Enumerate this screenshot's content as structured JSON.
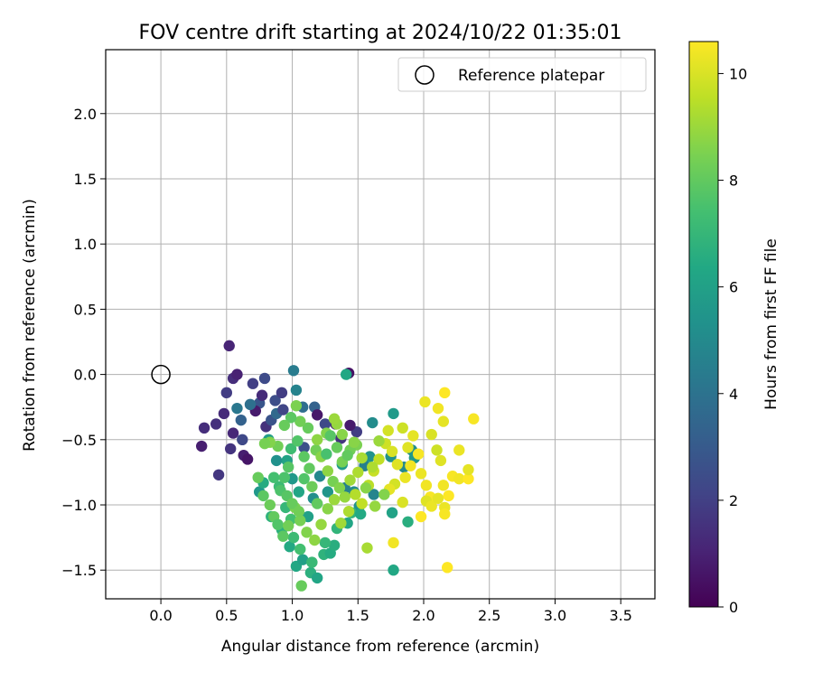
{
  "chart_data": {
    "type": "scatter",
    "title": "FOV centre drift starting at 2024/10/22 01:35:01",
    "xlabel": "Angular distance from reference (arcmin)",
    "ylabel": "Rotation from reference (arcmin)",
    "xlim": [
      -0.42,
      3.76
    ],
    "ylim": [
      -1.72,
      2.49
    ],
    "x_ticks": [
      "0.0",
      "0.5",
      "1.0",
      "1.5",
      "2.0",
      "2.5",
      "3.0",
      "3.5"
    ],
    "y_ticks": [
      "-1.5",
      "-1.0",
      "-0.5",
      "0.0",
      "0.5",
      "1.0",
      "1.5",
      "2.0"
    ],
    "grid": true,
    "legend": {
      "placement": "top-right",
      "entries": [
        "Reference platepar"
      ]
    },
    "reference_point": {
      "label": "Reference platepar",
      "x": 0.0,
      "y": 0.0
    },
    "colorbar": {
      "label": "Hours from first FF file",
      "colormap": "viridis",
      "range": [
        0,
        10.6
      ],
      "ticks": [
        "0",
        "2",
        "4",
        "6",
        "8",
        "10"
      ]
    },
    "points": [
      [
        0.52,
        0.22,
        1.1
      ],
      [
        0.53,
        -0.57,
        1.6
      ],
      [
        0.55,
        -0.03,
        1.4
      ],
      [
        0.58,
        0.0,
        1.0
      ],
      [
        0.48,
        -0.3,
        1.3
      ],
      [
        0.5,
        -0.14,
        1.9
      ],
      [
        0.55,
        -0.45,
        1.2
      ],
      [
        0.62,
        -0.5,
        2.3
      ],
      [
        0.63,
        -0.62,
        0.9
      ],
      [
        0.66,
        -0.65,
        0.6
      ],
      [
        0.42,
        -0.38,
        1.5
      ],
      [
        0.44,
        -0.77,
        1.7
      ],
      [
        0.33,
        -0.41,
        1.4
      ],
      [
        0.31,
        -0.55,
        0.9
      ],
      [
        0.7,
        -0.07,
        2.0
      ],
      [
        0.75,
        -0.22,
        2.8
      ],
      [
        0.79,
        -0.03,
        2.4
      ],
      [
        0.77,
        -0.16,
        1.3
      ],
      [
        0.72,
        -0.28,
        0.8
      ],
      [
        0.8,
        -0.4,
        1.5
      ],
      [
        0.68,
        -0.23,
        3.9
      ],
      [
        0.58,
        -0.26,
        4.2
      ],
      [
        0.61,
        -0.35,
        3.3
      ],
      [
        0.84,
        -0.35,
        2.7
      ],
      [
        0.88,
        -0.3,
        3.6
      ],
      [
        0.87,
        -0.2,
        2.5
      ],
      [
        0.92,
        -0.14,
        1.9
      ],
      [
        0.93,
        -0.27,
        2.2
      ],
      [
        1.01,
        0.03,
        4.4
      ],
      [
        1.03,
        -0.12,
        4.7
      ],
      [
        1.08,
        -0.25,
        3.8
      ],
      [
        1.17,
        -0.25,
        3.3
      ],
      [
        1.19,
        -0.31,
        0.7
      ],
      [
        1.33,
        -0.38,
        1.2
      ],
      [
        1.43,
        0.01,
        0.5
      ],
      [
        1.41,
        -0.0,
        6.3
      ],
      [
        1.37,
        -0.49,
        1.6
      ],
      [
        1.25,
        -0.38,
        2.3
      ],
      [
        1.09,
        -0.56,
        2.6
      ],
      [
        1.49,
        -0.44,
        1.9
      ],
      [
        1.44,
        -0.39,
        0.8
      ],
      [
        1.55,
        -0.7,
        4.6
      ],
      [
        1.61,
        -0.37,
        5.1
      ],
      [
        1.59,
        -0.63,
        5.4
      ],
      [
        1.75,
        -0.63,
        5.3
      ],
      [
        1.77,
        -0.3,
        5.7
      ],
      [
        1.91,
        -0.58,
        5.2
      ],
      [
        1.85,
        -0.71,
        4.9
      ],
      [
        1.93,
        -0.64,
        5.6
      ],
      [
        1.62,
        -0.92,
        4.8
      ],
      [
        1.51,
        -1.01,
        5.3
      ],
      [
        1.76,
        -1.06,
        6.1
      ],
      [
        1.88,
        -1.13,
        6.6
      ],
      [
        1.77,
        -1.5,
        6.3
      ],
      [
        1.47,
        -0.9,
        5.0
      ],
      [
        1.4,
        -0.87,
        4.6
      ],
      [
        1.38,
        -0.69,
        5.8
      ],
      [
        1.27,
        -0.9,
        5.5
      ],
      [
        1.21,
        -0.78,
        4.9
      ],
      [
        1.16,
        -0.95,
        5.2
      ],
      [
        1.12,
        -1.09,
        6.0
      ],
      [
        1.05,
        -0.9,
        6.2
      ],
      [
        1.0,
        -0.8,
        5.6
      ],
      [
        0.96,
        -0.66,
        6.1
      ],
      [
        0.88,
        -0.66,
        5.3
      ],
      [
        0.82,
        -0.5,
        5.9
      ],
      [
        0.75,
        -0.9,
        5.6
      ],
      [
        0.78,
        -0.83,
        6.5
      ],
      [
        0.84,
        -1.09,
        6.8
      ],
      [
        0.92,
        -1.19,
        6.7
      ],
      [
        0.98,
        -1.32,
        6.4
      ],
      [
        1.03,
        -1.47,
        6.3
      ],
      [
        1.08,
        -1.42,
        6.0
      ],
      [
        1.14,
        -1.52,
        6.7
      ],
      [
        1.19,
        -1.56,
        6.2
      ],
      [
        1.24,
        -1.38,
        6.8
      ],
      [
        1.29,
        -1.37,
        6.5
      ],
      [
        1.32,
        -1.31,
        6.6
      ],
      [
        1.42,
        -1.14,
        6.2
      ],
      [
        1.45,
        -1.06,
        6.9
      ],
      [
        1.52,
        -1.07,
        6.4
      ],
      [
        1.34,
        -1.18,
        6.9
      ],
      [
        1.25,
        -1.29,
        7.0
      ],
      [
        1.15,
        -1.44,
        7.1
      ],
      [
        1.07,
        -1.62,
        8.1
      ],
      [
        1.06,
        -1.34,
        7.4
      ],
      [
        1.01,
        -1.25,
        7.2
      ],
      [
        0.99,
        -1.11,
        7.4
      ],
      [
        0.95,
        -1.02,
        7.0
      ],
      [
        0.9,
        -0.86,
        7.2
      ],
      [
        0.94,
        -0.79,
        7.6
      ],
      [
        0.97,
        -0.71,
        7.8
      ],
      [
        0.99,
        -0.57,
        7.3
      ],
      [
        1.04,
        -0.51,
        7.7
      ],
      [
        1.09,
        -0.63,
        7.9
      ],
      [
        1.13,
        -0.72,
        8.0
      ],
      [
        1.18,
        -0.58,
        8.3
      ],
      [
        1.22,
        -0.63,
        8.7
      ],
      [
        1.27,
        -0.74,
        8.8
      ],
      [
        1.31,
        -0.82,
        8.4
      ],
      [
        1.36,
        -0.87,
        8.6
      ],
      [
        1.4,
        -0.94,
        8.9
      ],
      [
        1.44,
        -0.81,
        9.1
      ],
      [
        1.5,
        -0.75,
        9.3
      ],
      [
        1.53,
        -0.64,
        9.2
      ],
      [
        1.49,
        -0.54,
        8.5
      ],
      [
        1.44,
        -0.58,
        8.3
      ],
      [
        1.38,
        -0.46,
        8.7
      ],
      [
        1.34,
        -0.38,
        8.9
      ],
      [
        1.32,
        -0.34,
        9.0
      ],
      [
        1.26,
        -0.45,
        8.6
      ],
      [
        1.19,
        -0.5,
        8.8
      ],
      [
        1.12,
        -0.41,
        8.1
      ],
      [
        1.06,
        -0.36,
        8.3
      ],
      [
        1.03,
        -0.24,
        8.5
      ],
      [
        0.99,
        -0.33,
        7.9
      ],
      [
        0.94,
        -0.39,
        8.1
      ],
      [
        0.89,
        -0.55,
        8.3
      ],
      [
        0.83,
        -0.52,
        8.6
      ],
      [
        0.79,
        -0.53,
        8.4
      ],
      [
        0.74,
        -0.79,
        8.1
      ],
      [
        0.78,
        -0.93,
        7.9
      ],
      [
        0.83,
        -1.0,
        8.2
      ],
      [
        0.86,
        -1.09,
        8.0
      ],
      [
        0.89,
        -1.15,
        7.7
      ],
      [
        0.93,
        -1.24,
        7.9
      ],
      [
        0.97,
        -1.16,
        8.3
      ],
      [
        1.02,
        -1.02,
        8.5
      ],
      [
        1.06,
        -1.12,
        8.4
      ],
      [
        1.11,
        -1.21,
        8.6
      ],
      [
        1.17,
        -1.27,
        8.8
      ],
      [
        1.22,
        -1.15,
        8.9
      ],
      [
        1.27,
        -1.03,
        8.7
      ],
      [
        1.32,
        -0.96,
        9.0
      ],
      [
        1.37,
        -1.14,
        9.1
      ],
      [
        1.43,
        -1.05,
        9.3
      ],
      [
        1.48,
        -0.92,
        9.4
      ],
      [
        1.53,
        -0.99,
        9.6
      ],
      [
        1.57,
        -1.33,
        9.2
      ],
      [
        1.58,
        -0.85,
        9.5
      ],
      [
        1.62,
        -0.74,
        9.7
      ],
      [
        1.66,
        -0.65,
        9.6
      ],
      [
        1.71,
        -0.53,
        9.8
      ],
      [
        1.73,
        -0.43,
        9.9
      ],
      [
        1.76,
        -0.59,
        10.0
      ],
      [
        1.8,
        -0.69,
        10.1
      ],
      [
        1.78,
        -0.84,
        9.9
      ],
      [
        1.74,
        -0.88,
        10.2
      ],
      [
        1.77,
        -1.29,
        10.4
      ],
      [
        1.84,
        -0.98,
        10.0
      ],
      [
        1.86,
        -0.79,
        10.3
      ],
      [
        1.9,
        -0.7,
        10.4
      ],
      [
        1.88,
        -0.56,
        10.1
      ],
      [
        1.92,
        -0.47,
        10.2
      ],
      [
        1.96,
        -0.61,
        10.5
      ],
      [
        1.98,
        -0.76,
        10.3
      ],
      [
        2.02,
        -0.85,
        10.4
      ],
      [
        2.05,
        -0.94,
        10.5
      ],
      [
        2.02,
        -0.97,
        10.1
      ],
      [
        1.98,
        -1.09,
        10.6
      ],
      [
        2.06,
        -1.01,
        10.3
      ],
      [
        2.11,
        -0.95,
        10.2
      ],
      [
        2.15,
        -0.85,
        10.4
      ],
      [
        2.19,
        -0.93,
        10.6
      ],
      [
        2.22,
        -0.78,
        10.5
      ],
      [
        2.27,
        -0.8,
        10.4
      ],
      [
        2.34,
        -0.8,
        10.6
      ],
      [
        2.34,
        -0.73,
        10.2
      ],
      [
        2.27,
        -0.58,
        10.3
      ],
      [
        2.13,
        -0.66,
        10.1
      ],
      [
        2.1,
        -0.58,
        9.8
      ],
      [
        2.06,
        -0.46,
        10.0
      ],
      [
        2.01,
        -0.21,
        10.3
      ],
      [
        2.11,
        -0.26,
        10.4
      ],
      [
        2.16,
        -0.14,
        10.6
      ],
      [
        2.15,
        -0.36,
        10.2
      ],
      [
        2.38,
        -0.34,
        10.5
      ],
      [
        2.16,
        -1.02,
        10.3
      ],
      [
        2.16,
        -1.07,
        10.5
      ],
      [
        2.18,
        -1.48,
        10.6
      ],
      [
        1.84,
        -0.41,
        9.8
      ],
      [
        1.66,
        -0.51,
        9.0
      ],
      [
        1.61,
        -0.71,
        9.3
      ],
      [
        1.56,
        -0.87,
        8.7
      ],
      [
        1.63,
        -1.01,
        8.9
      ],
      [
        1.7,
        -0.92,
        8.6
      ],
      [
        1.15,
        -0.86,
        8.2
      ],
      [
        1.19,
        -0.99,
        8.0
      ],
      [
        1.09,
        -0.8,
        7.7
      ],
      [
        1.26,
        -0.61,
        7.5
      ],
      [
        1.29,
        -0.47,
        7.8
      ],
      [
        1.34,
        -0.56,
        8.1
      ],
      [
        1.38,
        -0.67,
        8.4
      ],
      [
        1.42,
        -0.62,
        8.0
      ],
      [
        1.47,
        -0.52,
        8.7
      ],
      [
        0.86,
        -0.79,
        7.4
      ],
      [
        0.91,
        -0.89,
        7.6
      ],
      [
        0.96,
        -0.93,
        7.8
      ],
      [
        1.0,
        -0.99,
        8.1
      ],
      [
        1.05,
        -1.05,
        8.3
      ]
    ]
  }
}
